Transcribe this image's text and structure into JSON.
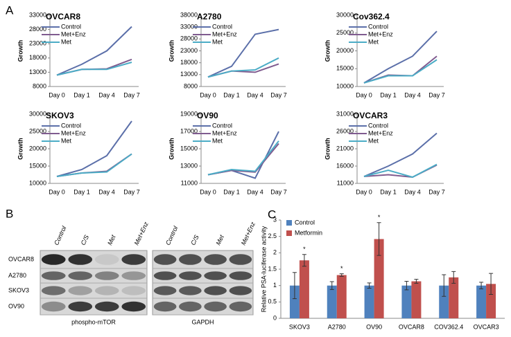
{
  "panel_labels": [
    "A",
    "B",
    "C"
  ],
  "chart_data": [
    {
      "type": "line",
      "title": "OVCAR8",
      "y_label": "Growth",
      "categories": [
        "Day 0",
        "Day 1",
        "Day 4",
        "Day 7"
      ],
      "ylim": [
        8000,
        33000
      ],
      "yticks": [
        8000,
        13000,
        18000,
        23000,
        28000,
        33000
      ],
      "series": [
        {
          "name": "Control",
          "color": "#5b6fa9",
          "values": [
            12000,
            15800,
            20500,
            29000
          ]
        },
        {
          "name": "Met+Enz",
          "color": "#7f5b8f",
          "values": [
            12000,
            14000,
            14200,
            17500
          ]
        },
        {
          "name": "Met",
          "color": "#4bacc6",
          "values": [
            12000,
            14000,
            14000,
            16500
          ]
        }
      ]
    },
    {
      "type": "line",
      "title": "A2780",
      "y_label": "Growth",
      "categories": [
        "Day 0",
        "Day 1",
        "Day 4",
        "Day 7"
      ],
      "ylim": [
        8000,
        38000
      ],
      "yticks": [
        8000,
        13000,
        18000,
        23000,
        28000,
        33000,
        38000
      ],
      "series": [
        {
          "name": "Control",
          "color": "#5b6fa9",
          "values": [
            12000,
            16500,
            30000,
            32000
          ]
        },
        {
          "name": "Met+Enz",
          "color": "#7f5b8f",
          "values": [
            12000,
            14500,
            14000,
            17500
          ]
        },
        {
          "name": "Met",
          "color": "#4bacc6",
          "values": [
            12000,
            14500,
            15000,
            20000
          ]
        }
      ]
    },
    {
      "type": "line",
      "title": "Cov362.4",
      "y_label": "Growth",
      "categories": [
        "Day 0",
        "Day 1",
        "Day 4",
        "Day 7"
      ],
      "ylim": [
        10000,
        30000
      ],
      "yticks": [
        10000,
        15000,
        20000,
        25000,
        30000
      ],
      "series": [
        {
          "name": "Control",
          "color": "#5b6fa9",
          "values": [
            11000,
            15000,
            18500,
            25500
          ]
        },
        {
          "name": "Met+Enz",
          "color": "#7f5b8f",
          "values": [
            11000,
            13200,
            13000,
            18500
          ]
        },
        {
          "name": "Met",
          "color": "#4bacc6",
          "values": [
            11000,
            13000,
            13000,
            17500
          ]
        }
      ]
    },
    {
      "type": "line",
      "title": "SKOV3",
      "y_label": "Growth",
      "categories": [
        "Day 0",
        "Day 1",
        "Day 4",
        "Day 7"
      ],
      "ylim": [
        10000,
        30000
      ],
      "yticks": [
        10000,
        15000,
        20000,
        25000,
        30000
      ],
      "series": [
        {
          "name": "Control",
          "color": "#5b6fa9",
          "values": [
            12000,
            14000,
            18000,
            28000
          ]
        },
        {
          "name": "Met+Enz",
          "color": "#7f5b8f",
          "values": [
            12000,
            13000,
            13500,
            18500
          ]
        },
        {
          "name": "Met",
          "color": "#4bacc6",
          "values": [
            12000,
            13000,
            13300,
            18500
          ]
        }
      ]
    },
    {
      "type": "line",
      "title": "OV90",
      "y_label": "Growth",
      "categories": [
        "Day 0",
        "Day 1",
        "Day 4",
        "Day 7"
      ],
      "ylim": [
        11000,
        19000
      ],
      "yticks": [
        11000,
        13000,
        15000,
        17000,
        19000
      ],
      "series": [
        {
          "name": "Control",
          "color": "#5b6fa9",
          "values": [
            12000,
            12500,
            11600,
            17000
          ]
        },
        {
          "name": "Met+Enz",
          "color": "#7f5b8f",
          "values": [
            12000,
            12500,
            12300,
            15600
          ]
        },
        {
          "name": "Met",
          "color": "#4bacc6",
          "values": [
            12000,
            12600,
            12400,
            15900
          ]
        }
      ]
    },
    {
      "type": "line",
      "title": "OVCAR3",
      "y_label": "Growth",
      "categories": [
        "Day 0",
        "Day 1",
        "Day 4",
        "Day 7"
      ],
      "ylim": [
        11000,
        31000
      ],
      "yticks": [
        11000,
        16000,
        21000,
        26000,
        31000
      ],
      "series": [
        {
          "name": "Control",
          "color": "#5b6fa9",
          "values": [
            13000,
            16000,
            19500,
            25500
          ]
        },
        {
          "name": "Met+Enz",
          "color": "#7f5b8f",
          "values": [
            13000,
            13500,
            12800,
            16300
          ]
        },
        {
          "name": "Met",
          "color": "#4bacc6",
          "values": [
            13000,
            14800,
            12800,
            16500
          ]
        }
      ]
    },
    {
      "type": "bar",
      "y_label": "Relative PSA-luciferase activity",
      "categories": [
        "SKOV3",
        "A2780",
        "OV90",
        "OVCAR8",
        "COV362.4",
        "OVCAR3"
      ],
      "ylim": [
        0,
        3
      ],
      "yticks": [
        0,
        0.5,
        1,
        1.5,
        2,
        2.5,
        3
      ],
      "legend": "upper-left",
      "significance": [
        "*",
        "*",
        "*",
        null,
        null,
        null
      ],
      "series": [
        {
          "name": "Control",
          "color": "#4f81bd",
          "values": [
            1,
            1,
            1,
            1,
            1,
            1
          ],
          "errors": [
            0.4,
            0.12,
            0.08,
            0.13,
            0.33,
            0.1
          ]
        },
        {
          "name": "Metformin",
          "color": "#c0504d",
          "values": [
            1.77,
            1.32,
            2.42,
            1.13,
            1.25,
            1.05
          ],
          "errors": [
            0.18,
            0.04,
            0.5,
            0.06,
            0.18,
            0.32
          ]
        }
      ]
    }
  ],
  "blot": {
    "row_labels": [
      "OVCAR8",
      "A2780",
      "SKOV3",
      "OV90"
    ],
    "column_labels": [
      "Control",
      "C/S",
      "Met",
      "Met+Enz"
    ],
    "panel_titles": [
      "phospho-mTOR",
      "GAPDH"
    ]
  }
}
